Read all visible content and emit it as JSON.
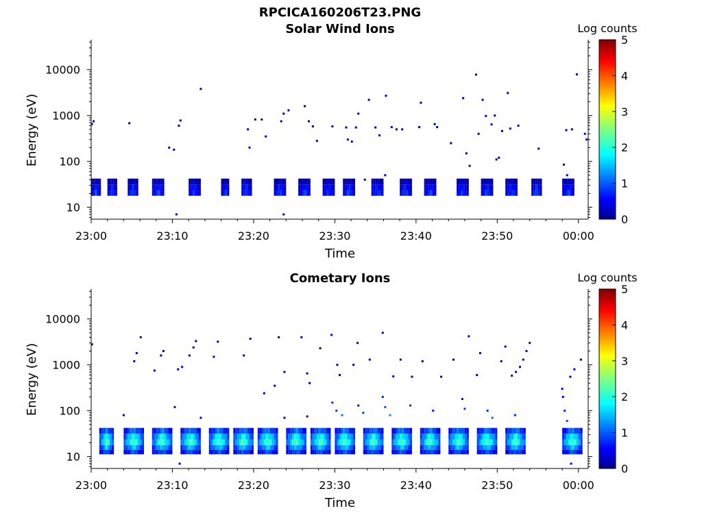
{
  "figure": {
    "title": "RPCICA160206T23.PNG"
  },
  "chart_data": [
    {
      "type": "heatmap",
      "title": "Solar Wind Ions",
      "xlabel": "Time",
      "ylabel": "Energy (eV)",
      "x_ticks": [
        "23:00",
        "23:10",
        "23:20",
        "23:30",
        "23:40",
        "23:50",
        "00:00"
      ],
      "x_tick_minutes": [
        0,
        10,
        20,
        30,
        40,
        50,
        60
      ],
      "xlim_minutes": [
        0,
        61.2
      ],
      "y_scale": "log",
      "y_ticks": [
        "10",
        "100",
        "1000",
        "10000"
      ],
      "y_tick_values": [
        10,
        100,
        1000,
        10000
      ],
      "ylim": [
        5.5,
        45000
      ],
      "colorbar": {
        "label": "Log counts",
        "ticks": [
          "0",
          "1",
          "2",
          "3",
          "4",
          "5"
        ],
        "range": [
          0,
          5
        ],
        "colormap": "jet"
      },
      "low_band": {
        "t_start": [
          0,
          2,
          4.5,
          7.5,
          12,
          16,
          18.5,
          22.5,
          25.5,
          28.5,
          31,
          34.5,
          38,
          41,
          45,
          48,
          51,
          54.2,
          58
        ],
        "t_end": [
          1.2,
          3.2,
          5.8,
          9,
          13.5,
          17,
          19.8,
          24,
          27,
          30,
          32.5,
          36,
          39.5,
          42.5,
          46.5,
          49.5,
          52.5,
          55.5,
          59.5
        ],
        "bins": [
          {
            "e_low": 17.8,
            "e_high": 23.7,
            "level": 0.9
          },
          {
            "e_low": 23.7,
            "e_high": 31.6,
            "level": 0.7
          },
          {
            "e_low": 31.6,
            "e_high": 42.2,
            "level": 0.3
          }
        ]
      },
      "scatter": [
        {
          "t": 0.1,
          "e": 650,
          "v": 0.2
        },
        {
          "t": 0.3,
          "e": 750,
          "v": 0.2
        },
        {
          "t": 4.7,
          "e": 680,
          "v": 0.2
        },
        {
          "t": 9.6,
          "e": 200,
          "v": 0.3
        },
        {
          "t": 10.2,
          "e": 180,
          "v": 0.2
        },
        {
          "t": 10.8,
          "e": 600,
          "v": 0.2
        },
        {
          "t": 11.0,
          "e": 780,
          "v": 0.2
        },
        {
          "t": 13.5,
          "e": 3800,
          "v": 0.2
        },
        {
          "t": 19.3,
          "e": 500,
          "v": 0.2
        },
        {
          "t": 19.5,
          "e": 200,
          "v": 0.4
        },
        {
          "t": 20.2,
          "e": 820,
          "v": 0.2
        },
        {
          "t": 21.0,
          "e": 820,
          "v": 0.2
        },
        {
          "t": 21.5,
          "e": 350,
          "v": 0.2
        },
        {
          "t": 23.4,
          "e": 750,
          "v": 0.3
        },
        {
          "t": 23.7,
          "e": 1100,
          "v": 0.2
        },
        {
          "t": 24.3,
          "e": 1300,
          "v": 0.2
        },
        {
          "t": 26.3,
          "e": 1600,
          "v": 0.2
        },
        {
          "t": 26.8,
          "e": 750,
          "v": 0.2
        },
        {
          "t": 27.3,
          "e": 580,
          "v": 0.2
        },
        {
          "t": 27.8,
          "e": 280,
          "v": 0.2
        },
        {
          "t": 29.7,
          "e": 580,
          "v": 0.2
        },
        {
          "t": 31.4,
          "e": 550,
          "v": 0.2
        },
        {
          "t": 31.6,
          "e": 300,
          "v": 0.4
        },
        {
          "t": 32.1,
          "e": 270,
          "v": 0.2
        },
        {
          "t": 32.6,
          "e": 550,
          "v": 0.3
        },
        {
          "t": 32.9,
          "e": 1100,
          "v": 0.2
        },
        {
          "t": 34.2,
          "e": 2200,
          "v": 0.2
        },
        {
          "t": 35.0,
          "e": 550,
          "v": 0.2
        },
        {
          "t": 35.5,
          "e": 370,
          "v": 0.2
        },
        {
          "t": 36.3,
          "e": 2700,
          "v": 0.2
        },
        {
          "t": 37.0,
          "e": 560,
          "v": 0.3
        },
        {
          "t": 37.6,
          "e": 500,
          "v": 0.2
        },
        {
          "t": 38.3,
          "e": 500,
          "v": 0.2
        },
        {
          "t": 40.4,
          "e": 560,
          "v": 0.2
        },
        {
          "t": 40.6,
          "e": 1900,
          "v": 0.2
        },
        {
          "t": 42.3,
          "e": 650,
          "v": 0.2
        },
        {
          "t": 42.6,
          "e": 560,
          "v": 0.2
        },
        {
          "t": 44.3,
          "e": 250,
          "v": 0.2
        },
        {
          "t": 45.8,
          "e": 2400,
          "v": 0.2
        },
        {
          "t": 46.2,
          "e": 150,
          "v": 0.2
        },
        {
          "t": 46.6,
          "e": 80,
          "v": 0.2
        },
        {
          "t": 47.4,
          "e": 7800,
          "v": 0.2
        },
        {
          "t": 47.7,
          "e": 400,
          "v": 0.2
        },
        {
          "t": 48.2,
          "e": 2200,
          "v": 0.2
        },
        {
          "t": 48.6,
          "e": 980,
          "v": 0.2
        },
        {
          "t": 49.3,
          "e": 640,
          "v": 0.3
        },
        {
          "t": 49.7,
          "e": 1000,
          "v": 0.2
        },
        {
          "t": 49.9,
          "e": 110,
          "v": 0.2
        },
        {
          "t": 50.2,
          "e": 120,
          "v": 0.2
        },
        {
          "t": 50.6,
          "e": 460,
          "v": 0.2
        },
        {
          "t": 51.3,
          "e": 3100,
          "v": 0.3
        },
        {
          "t": 51.6,
          "e": 520,
          "v": 0.2
        },
        {
          "t": 52.6,
          "e": 600,
          "v": 0.2
        },
        {
          "t": 55.1,
          "e": 190,
          "v": 0.2
        },
        {
          "t": 58.5,
          "e": 480,
          "v": 0.2
        },
        {
          "t": 59.2,
          "e": 500,
          "v": 0.2
        },
        {
          "t": 59.8,
          "e": 7900,
          "v": 0.2
        },
        {
          "t": 58.2,
          "e": 85,
          "v": 0.2
        },
        {
          "t": 58.6,
          "e": 50,
          "v": 0.5
        },
        {
          "t": 59.0,
          "e": 40,
          "v": 0.3
        },
        {
          "t": 60.8,
          "e": 400,
          "v": 0.2
        },
        {
          "t": 61.0,
          "e": 300,
          "v": 0.2
        },
        {
          "t": 10.5,
          "e": 7,
          "v": 0.5
        },
        {
          "t": 23.7,
          "e": 7,
          "v": 0.5
        },
        {
          "t": 33.7,
          "e": 40,
          "v": 0.4
        },
        {
          "t": 36.2,
          "e": 50,
          "v": 0.3
        }
      ]
    },
    {
      "type": "heatmap",
      "title": "Cometary Ions",
      "xlabel": "Time",
      "ylabel": "Energy (eV)",
      "x_ticks": [
        "23:00",
        "23:10",
        "23:20",
        "23:30",
        "23:40",
        "23:50",
        "00:00"
      ],
      "x_tick_minutes": [
        0,
        10,
        20,
        30,
        40,
        50,
        60
      ],
      "xlim_minutes": [
        0,
        61.2
      ],
      "y_scale": "log",
      "y_ticks": [
        "10",
        "100",
        "1000",
        "10000"
      ],
      "y_tick_values": [
        10,
        100,
        1000,
        10000
      ],
      "ylim": [
        5.5,
        45000
      ],
      "colorbar": {
        "label": "Log counts",
        "ticks": [
          "0",
          "1",
          "2",
          "3",
          "4",
          "5"
        ],
        "range": [
          0,
          5
        ],
        "colormap": "jet"
      },
      "low_band": {
        "t_start": [
          1,
          4,
          7.5,
          11,
          14.5,
          17.5,
          20.5,
          24,
          27,
          30,
          33.5,
          37,
          40.5,
          44,
          47.5,
          51,
          58
        ],
        "t_end": [
          2.8,
          6.5,
          10,
          13.5,
          17,
          20,
          23,
          26.5,
          29.5,
          32.5,
          36,
          39.5,
          43,
          46.5,
          50,
          53.5,
          60.5
        ],
        "bins": [
          {
            "e_low": 11.2,
            "e_high": 14.1,
            "level": 1.0
          },
          {
            "e_low": 14.1,
            "e_high": 17.8,
            "level": 1.6
          },
          {
            "e_low": 17.8,
            "e_high": 23.7,
            "level": 2.2
          },
          {
            "e_low": 23.7,
            "e_high": 31.6,
            "level": 1.9
          },
          {
            "e_low": 31.6,
            "e_high": 42.2,
            "level": 1.2
          }
        ]
      },
      "scatter": [
        {
          "t": 0.1,
          "e": 2800,
          "v": 0.2
        },
        {
          "t": 5.3,
          "e": 1200,
          "v": 0.2
        },
        {
          "t": 5.6,
          "e": 1800,
          "v": 0.2
        },
        {
          "t": 6.1,
          "e": 4000,
          "v": 0.3
        },
        {
          "t": 7.8,
          "e": 750,
          "v": 0.2
        },
        {
          "t": 8.6,
          "e": 1600,
          "v": 0.2
        },
        {
          "t": 8.9,
          "e": 2000,
          "v": 0.2
        },
        {
          "t": 10.7,
          "e": 800,
          "v": 0.2
        },
        {
          "t": 11.2,
          "e": 900,
          "v": 0.2
        },
        {
          "t": 12.1,
          "e": 1600,
          "v": 0.2
        },
        {
          "t": 12.6,
          "e": 2400,
          "v": 0.2
        },
        {
          "t": 12.9,
          "e": 3300,
          "v": 0.2
        },
        {
          "t": 15.1,
          "e": 1500,
          "v": 0.2
        },
        {
          "t": 15.6,
          "e": 3200,
          "v": 0.2
        },
        {
          "t": 18.8,
          "e": 1600,
          "v": 0.3
        },
        {
          "t": 19.6,
          "e": 3700,
          "v": 0.2
        },
        {
          "t": 21.3,
          "e": 240,
          "v": 0.2
        },
        {
          "t": 23.1,
          "e": 4000,
          "v": 0.2
        },
        {
          "t": 23.8,
          "e": 700,
          "v": 0.2
        },
        {
          "t": 25.9,
          "e": 4000,
          "v": 0.2
        },
        {
          "t": 26.6,
          "e": 650,
          "v": 0.2
        },
        {
          "t": 28.2,
          "e": 2300,
          "v": 0.2
        },
        {
          "t": 29.6,
          "e": 4500,
          "v": 0.3
        },
        {
          "t": 30.3,
          "e": 1000,
          "v": 0.2
        },
        {
          "t": 30.6,
          "e": 600,
          "v": 0.2
        },
        {
          "t": 32.3,
          "e": 1000,
          "v": 0.2
        },
        {
          "t": 32.8,
          "e": 3000,
          "v": 0.2
        },
        {
          "t": 34.3,
          "e": 1300,
          "v": 0.2
        },
        {
          "t": 35.9,
          "e": 5000,
          "v": 0.2
        },
        {
          "t": 37.2,
          "e": 560,
          "v": 0.2
        },
        {
          "t": 38.1,
          "e": 1300,
          "v": 0.2
        },
        {
          "t": 39.5,
          "e": 550,
          "v": 0.2
        },
        {
          "t": 40.8,
          "e": 1200,
          "v": 0.2
        },
        {
          "t": 43.1,
          "e": 550,
          "v": 0.2
        },
        {
          "t": 44.6,
          "e": 1300,
          "v": 0.2
        },
        {
          "t": 46.5,
          "e": 4200,
          "v": 0.2
        },
        {
          "t": 47.5,
          "e": 600,
          "v": 0.2
        },
        {
          "t": 47.9,
          "e": 1800,
          "v": 0.2
        },
        {
          "t": 50.5,
          "e": 1200,
          "v": 0.2
        },
        {
          "t": 51.0,
          "e": 2500,
          "v": 0.2
        },
        {
          "t": 51.8,
          "e": 580,
          "v": 0.2
        },
        {
          "t": 52.3,
          "e": 700,
          "v": 0.2
        },
        {
          "t": 52.8,
          "e": 900,
          "v": 0.2
        },
        {
          "t": 53.2,
          "e": 1300,
          "v": 0.2
        },
        {
          "t": 53.6,
          "e": 2000,
          "v": 0.2
        },
        {
          "t": 54.0,
          "e": 3000,
          "v": 0.2
        },
        {
          "t": 59.0,
          "e": 550,
          "v": 0.2
        },
        {
          "t": 59.5,
          "e": 800,
          "v": 0.2
        },
        {
          "t": 60.3,
          "e": 1300,
          "v": 0.2
        },
        {
          "t": 22.6,
          "e": 350,
          "v": 0.3
        },
        {
          "t": 26.9,
          "e": 400,
          "v": 0.2
        },
        {
          "t": 4.0,
          "e": 80,
          "v": 0.3
        },
        {
          "t": 10.3,
          "e": 120,
          "v": 0.5
        },
        {
          "t": 13.5,
          "e": 70,
          "v": 0.4
        },
        {
          "t": 23.8,
          "e": 70,
          "v": 0.3
        },
        {
          "t": 26.6,
          "e": 75,
          "v": 0.3
        },
        {
          "t": 29.7,
          "e": 150,
          "v": 0.8
        },
        {
          "t": 30.2,
          "e": 100,
          "v": 0.9
        },
        {
          "t": 30.9,
          "e": 80,
          "v": 1.2
        },
        {
          "t": 32.9,
          "e": 130,
          "v": 0.7
        },
        {
          "t": 33.5,
          "e": 90,
          "v": 0.9
        },
        {
          "t": 35.9,
          "e": 200,
          "v": 0.8
        },
        {
          "t": 36.2,
          "e": 120,
          "v": 1.0
        },
        {
          "t": 36.8,
          "e": 80,
          "v": 1.3
        },
        {
          "t": 39.3,
          "e": 130,
          "v": 0.8
        },
        {
          "t": 42.1,
          "e": 100,
          "v": 0.7
        },
        {
          "t": 45.7,
          "e": 180,
          "v": 0.6
        },
        {
          "t": 46.0,
          "e": 110,
          "v": 0.9
        },
        {
          "t": 48.8,
          "e": 100,
          "v": 0.8
        },
        {
          "t": 49.4,
          "e": 70,
          "v": 1.1
        },
        {
          "t": 52.2,
          "e": 80,
          "v": 0.8
        },
        {
          "t": 58.0,
          "e": 300,
          "v": 0.3
        },
        {
          "t": 58.1,
          "e": 200,
          "v": 0.6
        },
        {
          "t": 58.3,
          "e": 100,
          "v": 0.8
        },
        {
          "t": 58.6,
          "e": 60,
          "v": 1.0
        },
        {
          "t": 10.9,
          "e": 7,
          "v": 0.5
        },
        {
          "t": 59.1,
          "e": 7,
          "v": 0.5
        }
      ]
    }
  ]
}
